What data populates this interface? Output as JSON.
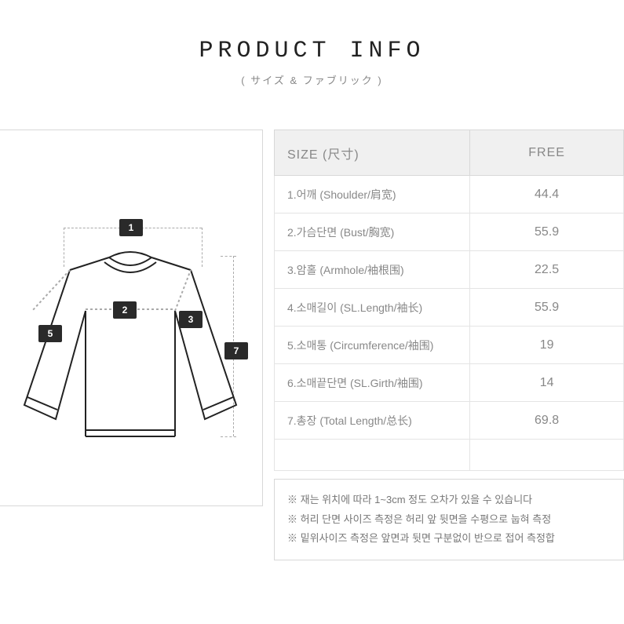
{
  "header": {
    "title": "PRODUCT INFO",
    "subtitle": "( サイズ & ファブリック )"
  },
  "size_table": {
    "header_size": "SIZE (尺寸)",
    "header_free": "FREE",
    "rows": [
      {
        "label": "1.어깨 (Shoulder/肩宽)",
        "value": "44.4"
      },
      {
        "label": "2.가슴단면 (Bust/胸宽)",
        "value": "55.9"
      },
      {
        "label": "3.암홀 (Armhole/袖根围)",
        "value": "22.5"
      },
      {
        "label": "4.소매길이 (SL.Length/袖长)",
        "value": "55.9"
      },
      {
        "label": "5.소매통 (Circumference/袖围)",
        "value": "19"
      },
      {
        "label": "6.소매끝단면 (SL.Girth/袖围)",
        "value": "14"
      },
      {
        "label": "7.총장 (Total Length/总长)",
        "value": "69.8"
      }
    ]
  },
  "diagram": {
    "tags": {
      "t1": "1",
      "t2": "2",
      "t3": "3",
      "t5": "5",
      "t7": "7"
    },
    "colors": {
      "tag_bg": "#2a2a2a",
      "stroke": "#222222",
      "dash": "#aaaaaa",
      "border": "#d8d8d8"
    }
  },
  "notes": {
    "n1": "※ 재는 위치에 따라 1~3cm 정도 오차가 있을 수 있습니다",
    "n2": "※ 허리 단면 사이즈 측정은 허리 앞 뒷면을 수평으로 눕혀 측정",
    "n3": "※ 밑위사이즈 측정은 앞면과 뒷면 구분없이 반으로 접어 측정합"
  }
}
